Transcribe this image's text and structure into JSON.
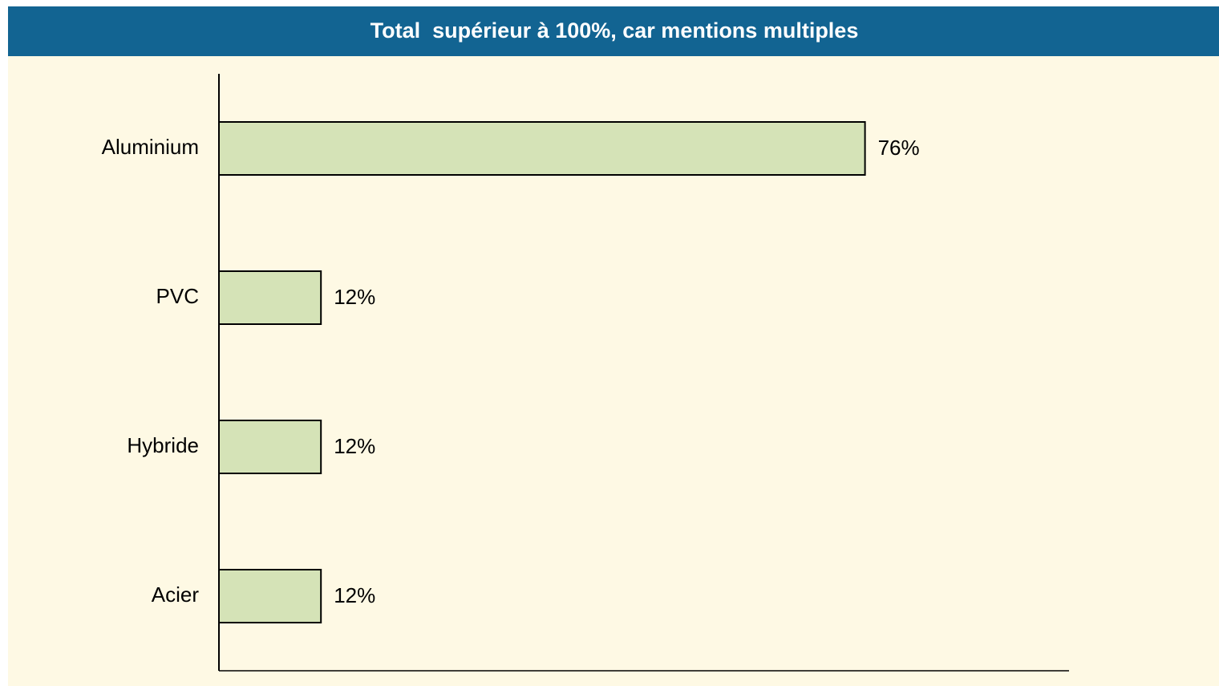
{
  "chart_data": {
    "type": "bar",
    "orientation": "horizontal",
    "title": "Total  supérieur à 100%, car mentions multiples",
    "categories": [
      "Aluminium",
      "PVC",
      "Hybride",
      "Acier"
    ],
    "values": [
      76,
      12,
      12,
      12
    ],
    "value_labels": [
      "76%",
      "12%",
      "12%",
      "12%"
    ],
    "color": "#d5e3b7",
    "xlim": [
      0,
      100
    ]
  }
}
